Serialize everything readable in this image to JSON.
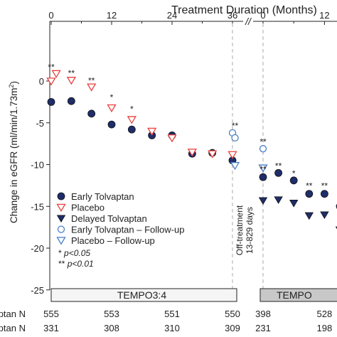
{
  "chart_data": {
    "type": "scatter",
    "top_axis_title": "Treatment Duration (Months)",
    "ylabel": "Change in eGFR (ml/min/1.73m²)",
    "ylabel_main": "Change in eGFR (ml/min/1.73m",
    "ylabel_sup": "2",
    "ylabel_tail": ")",
    "ylim": [
      -25,
      2
    ],
    "y_ticks": [
      0,
      -5,
      -10,
      -15,
      -20,
      -25
    ],
    "x_ticks_tempo34": [
      0,
      12,
      24,
      36
    ],
    "x_ticks_tempo_ext": [
      0,
      12
    ],
    "axis_break": "//",
    "off_treatment_text_1": "Off-treatment",
    "off_treatment_text_2": "13-829 days",
    "legend": [
      {
        "label": "Early Tolvaptan",
        "marker": "filled-circle"
      },
      {
        "label": "Placebo",
        "marker": "open-triangle-down-red"
      },
      {
        "label": "Delayed Tolvaptan",
        "marker": "filled-triangle-down"
      },
      {
        "label": "Early Tolvaptan – Follow-up",
        "marker": "open-circle-blue"
      },
      {
        "label": "Placebo – Follow-up",
        "marker": "open-triangle-down-blue"
      }
    ],
    "significance_notes": [
      "* p<0.05",
      "** p<0.01"
    ],
    "series": [
      {
        "name": "Early Tolvaptan",
        "marker": "filled-circle",
        "x": [
          0,
          4,
          8,
          12,
          16,
          20,
          24,
          28,
          32,
          36
        ],
        "y": [
          -2.5,
          -2.4,
          -3.9,
          -5.2,
          -5.8,
          -6.5,
          -6.5,
          -8.7,
          -8.6,
          -9.5
        ]
      },
      {
        "name": "Placebo",
        "marker": "open-triangle-down-red",
        "x": [
          0,
          1,
          4,
          8,
          12,
          16,
          20,
          24,
          28,
          32,
          36
        ],
        "y": [
          0,
          0.9,
          0.1,
          -0.7,
          -3.2,
          -4.6,
          -6.0,
          -6.8,
          -8.5,
          -8.7,
          -8.8
        ]
      },
      {
        "name": "Early Tolvaptan – Follow-up",
        "marker": "open-circle-blue",
        "x": [
          36,
          36.5,
          "ext 0"
        ],
        "y": [
          -6.2,
          -6.8,
          -8.1
        ]
      },
      {
        "name": "Placebo – Follow-up",
        "marker": "open-triangle-down-blue",
        "x": [
          36.5,
          "ext 0"
        ],
        "y": [
          -10.1,
          -10.4
        ]
      },
      {
        "name": "Early Tolvaptan (TEMPO extension)",
        "marker": "filled-circle",
        "x": [
          "ext 0",
          "ext 3",
          "ext 6",
          "ext 9",
          "ext 12",
          "ext 15"
        ],
        "y": [
          -11.5,
          -11.0,
          -11.9,
          -13.5,
          -13.5,
          -15.0
        ]
      },
      {
        "name": "Delayed Tolvaptan",
        "marker": "filled-triangle-down",
        "x": [
          "ext 0",
          "ext 3",
          "ext 6",
          "ext 9",
          "ext 12",
          "ext 15"
        ],
        "y": [
          -14.3,
          -14.2,
          -14.6,
          -16.1,
          -16.0,
          -17.8
        ]
      }
    ],
    "significance_labels": [
      {
        "text": "**",
        "x": 0,
        "y": 1.3
      },
      {
        "text": "**",
        "x": 4,
        "y": 0.6
      },
      {
        "text": "**",
        "x": 8,
        "y": -0.3
      },
      {
        "text": "*",
        "x": 12,
        "y": -2.3
      },
      {
        "text": "*",
        "x": 16,
        "y": -3.7
      },
      {
        "text": "**",
        "x": 36.5,
        "y": -5.7
      },
      {
        "text": "**",
        "x": "ext 0",
        "y": -7.6
      },
      {
        "text": "**",
        "x": "ext 0",
        "y": -10.9
      },
      {
        "text": "**",
        "x": "ext 3",
        "y": -10.5
      },
      {
        "text": "*",
        "x": "ext 6",
        "y": -11.4
      },
      {
        "text": "**",
        "x": "ext 9",
        "y": -12.9
      },
      {
        "text": "**",
        "x": "ext 12",
        "y": -12.9
      },
      {
        "text": "*",
        "x": "ext 15",
        "y": -14.4
      }
    ],
    "study_bars": [
      "TEMPO3:4",
      "TEMPO"
    ],
    "n_rows": [
      {
        "label": "olvaptan N",
        "values": [
          "555",
          "553",
          "551",
          "550",
          "398",
          "528"
        ]
      },
      {
        "label": "aptan N",
        "values": [
          "331",
          "308",
          "310",
          "309",
          "231",
          "198"
        ]
      }
    ]
  }
}
